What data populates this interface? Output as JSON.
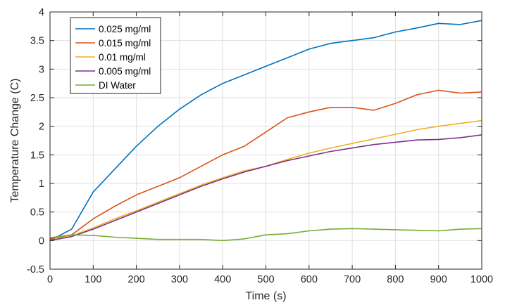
{
  "chart_data": {
    "type": "line",
    "title": "",
    "xlabel": "Time (s)",
    "ylabel": "Temperature Change (C)",
    "xlim": [
      0,
      1000
    ],
    "ylim": [
      -0.5,
      4
    ],
    "xticks": [
      0,
      100,
      200,
      300,
      400,
      500,
      600,
      700,
      800,
      900,
      1000
    ],
    "yticks": [
      -0.5,
      0,
      0.5,
      1,
      1.5,
      2,
      2.5,
      3,
      3.5,
      4
    ],
    "xtick_labels": [
      "0",
      "100",
      "200",
      "300",
      "400",
      "500",
      "600",
      "700",
      "800",
      "900",
      "1000"
    ],
    "ytick_labels": [
      "-0.5",
      "0",
      "0.5",
      "1",
      "1.5",
      "2",
      "2.5",
      "3",
      "3.5",
      "4"
    ],
    "grid": true,
    "legend_position": "top-left",
    "x": [
      0,
      50,
      100,
      150,
      200,
      250,
      300,
      350,
      400,
      450,
      500,
      550,
      600,
      650,
      700,
      750,
      800,
      850,
      900,
      950,
      1000
    ],
    "series": [
      {
        "name": "0.025 mg/ml",
        "color": "#0072BD",
        "values": [
          0.0,
          0.2,
          0.85,
          1.25,
          1.65,
          2.0,
          2.3,
          2.55,
          2.75,
          2.9,
          3.05,
          3.2,
          3.35,
          3.45,
          3.5,
          3.55,
          3.65,
          3.72,
          3.8,
          3.78,
          3.85
        ]
      },
      {
        "name": "0.015 mg/ml",
        "color": "#D95319",
        "values": [
          0.03,
          0.1,
          0.38,
          0.6,
          0.8,
          0.95,
          1.1,
          1.3,
          1.5,
          1.65,
          1.9,
          2.15,
          2.25,
          2.33,
          2.33,
          2.28,
          2.4,
          2.55,
          2.63,
          2.58,
          2.6
        ]
      },
      {
        "name": "0.01 mg/ml",
        "color": "#EDB120",
        "values": [
          0.0,
          0.08,
          0.22,
          0.38,
          0.52,
          0.67,
          0.82,
          0.97,
          1.1,
          1.22,
          1.3,
          1.42,
          1.53,
          1.62,
          1.7,
          1.78,
          1.86,
          1.94,
          2.0,
          2.05,
          2.1
        ]
      },
      {
        "name": "0.005 mg/ml",
        "color": "#7E2F8E",
        "values": [
          0.0,
          0.07,
          0.2,
          0.35,
          0.5,
          0.65,
          0.8,
          0.95,
          1.08,
          1.2,
          1.3,
          1.4,
          1.48,
          1.56,
          1.62,
          1.68,
          1.72,
          1.76,
          1.77,
          1.8,
          1.85
        ]
      },
      {
        "name": "DI Water",
        "color": "#77AC30",
        "values": [
          0.05,
          0.1,
          0.09,
          0.06,
          0.04,
          0.02,
          0.02,
          0.02,
          0.0,
          0.03,
          0.1,
          0.12,
          0.17,
          0.2,
          0.21,
          0.2,
          0.19,
          0.18,
          0.17,
          0.2,
          0.21
        ]
      }
    ]
  }
}
